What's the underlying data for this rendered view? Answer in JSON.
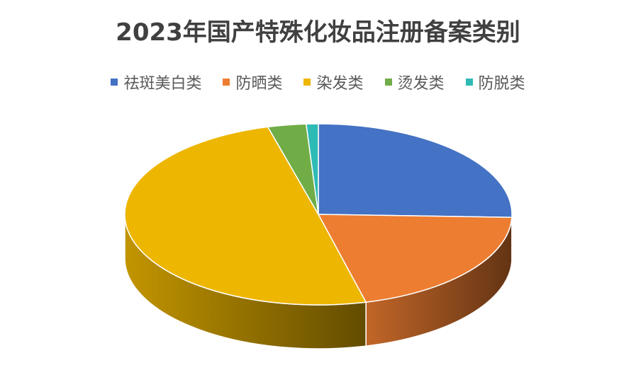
{
  "chart_data": {
    "type": "pie",
    "title": "2023年国产特殊化妆品注册备案类别",
    "legend_position": "top",
    "three_d": true,
    "categories": [
      "祛斑美白类",
      "防晒类",
      "染发类",
      "烫发类",
      "防脱类"
    ],
    "values": [
      25.5,
      20.5,
      49.7,
      3.2,
      1.0
    ],
    "unit": "percent (estimated)",
    "colors": [
      "#4472C4",
      "#ED7D31",
      "#EDB600",
      "#70AD47",
      "#2EBAB5"
    ]
  }
}
